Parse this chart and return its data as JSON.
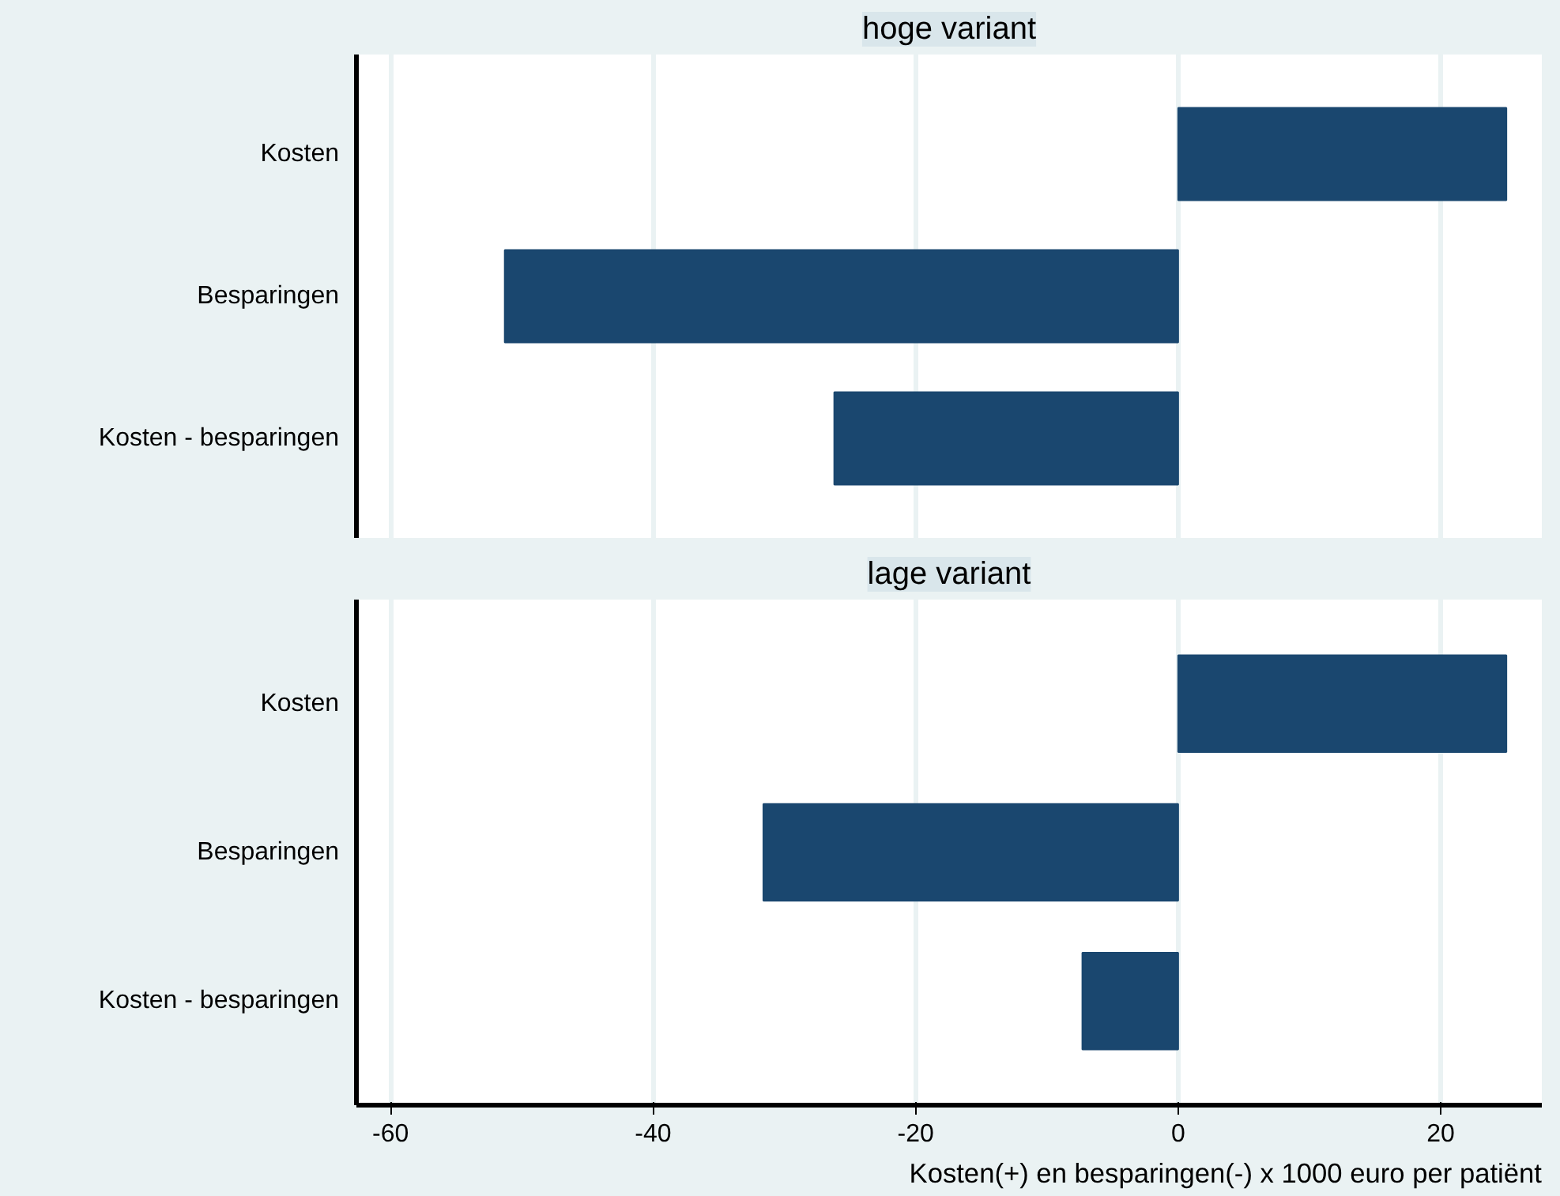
{
  "chart_data": [
    {
      "type": "bar",
      "orientation": "horizontal",
      "title": "hoge variant",
      "categories": [
        "Kosten",
        "Besparingen",
        "Kosten - besparingen"
      ],
      "values": [
        25.0,
        -51.3,
        -26.2
      ],
      "color": "#1a476f",
      "xlim": [
        -62.6,
        27.7
      ],
      "xticks": [
        -60,
        -40,
        -20,
        0,
        20
      ],
      "grid": "x",
      "tick_labels": "y"
    },
    {
      "type": "bar",
      "orientation": "horizontal",
      "title": "lage variant",
      "categories": [
        "Kosten",
        "Besparingen",
        "Kosten - besparingen"
      ],
      "values": [
        25.0,
        -31.6,
        -7.3
      ],
      "color": "#1a476f",
      "xlim": [
        -62.6,
        27.7
      ],
      "xticks": [
        -60,
        -40,
        -20,
        0,
        20
      ],
      "grid": "x",
      "xlabel": "Kosten(+) en besparingen(-) x 1000 euro per patiënt"
    }
  ]
}
